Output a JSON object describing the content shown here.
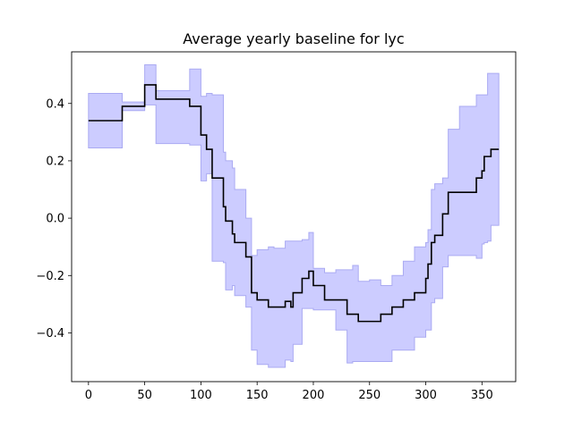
{
  "chart_data": {
    "type": "area",
    "title": "Average yearly baseline for lyc",
    "xlabel": "",
    "ylabel": "",
    "xlim": [
      -15,
      380
    ],
    "ylim": [
      -0.57,
      0.58
    ],
    "xticks": [
      0,
      50,
      100,
      150,
      200,
      250,
      300,
      350
    ],
    "yticks": [
      -0.4,
      -0.2,
      0.0,
      0.2,
      0.4
    ],
    "xtick_labels": [
      "0",
      "50",
      "100",
      "150",
      "200",
      "250",
      "300",
      "350"
    ],
    "ytick_labels": [
      "−0.4",
      "−0.2",
      "0.0",
      "0.2",
      "0.4"
    ],
    "grid": false,
    "line_color": "#000000",
    "band_fill_color": "#ccccff",
    "band_edge_color": "#aaaaf2",
    "series": [
      {
        "role": "mean",
        "x": [
          0,
          20,
          20,
          30,
          30,
          45,
          45,
          50,
          50,
          55,
          55,
          60,
          60,
          90,
          90,
          100,
          100,
          105,
          105,
          110,
          110,
          120,
          120,
          122,
          122,
          128,
          128,
          130,
          130,
          140,
          140,
          145,
          145,
          150,
          150,
          160,
          160,
          165,
          165,
          175,
          175,
          180,
          180,
          182,
          182,
          190,
          190,
          196,
          196,
          200,
          200,
          210,
          210,
          220,
          220,
          230,
          230,
          235,
          235,
          240,
          240,
          250,
          250,
          260,
          260,
          270,
          270,
          280,
          280,
          290,
          290,
          300,
          300,
          302,
          302,
          305,
          305,
          308,
          308,
          315,
          315,
          320,
          320,
          325,
          325,
          330,
          330,
          340,
          340,
          345,
          345,
          350,
          350,
          352,
          352,
          355,
          355,
          358,
          358,
          360,
          360,
          365
        ],
        "y": [
          0.34,
          0.34,
          0.34,
          0.34,
          0.39,
          0.39,
          0.39,
          0.39,
          0.465,
          0.465,
          0.465,
          0.465,
          0.415,
          0.415,
          0.39,
          0.39,
          0.29,
          0.29,
          0.24,
          0.24,
          0.14,
          0.14,
          0.04,
          0.04,
          -0.01,
          -0.01,
          -0.055,
          -0.055,
          -0.085,
          -0.085,
          -0.135,
          -0.135,
          -0.26,
          -0.26,
          -0.285,
          -0.285,
          -0.31,
          -0.31,
          -0.31,
          -0.31,
          -0.29,
          -0.29,
          -0.31,
          -0.31,
          -0.26,
          -0.26,
          -0.21,
          -0.21,
          -0.185,
          -0.185,
          -0.235,
          -0.235,
          -0.285,
          -0.285,
          -0.285,
          -0.285,
          -0.335,
          -0.335,
          -0.335,
          -0.335,
          -0.36,
          -0.36,
          -0.36,
          -0.36,
          -0.335,
          -0.335,
          -0.31,
          -0.31,
          -0.285,
          -0.285,
          -0.26,
          -0.26,
          -0.21,
          -0.21,
          -0.16,
          -0.16,
          -0.085,
          -0.085,
          -0.06,
          -0.06,
          0.015,
          0.015,
          0.09,
          0.09,
          0.09,
          0.09,
          0.09,
          0.09,
          0.09,
          0.09,
          0.14,
          0.14,
          0.165,
          0.165,
          0.215,
          0.215,
          0.215,
          0.215,
          0.24,
          0.24,
          0.24,
          0.24
        ]
      },
      {
        "role": "band_upper",
        "x": [
          0,
          20,
          20,
          30,
          30,
          45,
          45,
          50,
          50,
          55,
          55,
          60,
          60,
          90,
          90,
          100,
          100,
          105,
          105,
          110,
          110,
          120,
          120,
          122,
          122,
          128,
          128,
          130,
          130,
          140,
          140,
          145,
          145,
          150,
          150,
          160,
          160,
          165,
          165,
          175,
          175,
          180,
          180,
          182,
          182,
          190,
          190,
          196,
          196,
          200,
          200,
          210,
          210,
          220,
          220,
          230,
          230,
          235,
          235,
          240,
          240,
          250,
          250,
          260,
          260,
          270,
          270,
          280,
          280,
          290,
          290,
          300,
          300,
          302,
          302,
          305,
          305,
          308,
          308,
          315,
          315,
          320,
          320,
          325,
          325,
          330,
          330,
          340,
          340,
          345,
          345,
          350,
          350,
          352,
          352,
          355,
          355,
          358,
          358,
          360,
          360,
          365
        ],
        "y": [
          0.435,
          0.435,
          0.435,
          0.435,
          0.405,
          0.405,
          0.405,
          0.405,
          0.535,
          0.535,
          0.535,
          0.535,
          0.445,
          0.445,
          0.52,
          0.52,
          0.425,
          0.425,
          0.435,
          0.435,
          0.43,
          0.43,
          0.23,
          0.23,
          0.2,
          0.2,
          0.175,
          0.175,
          0.1,
          0.1,
          0.0,
          0.0,
          -0.13,
          -0.13,
          -0.11,
          -0.11,
          -0.1,
          -0.1,
          -0.105,
          -0.105,
          -0.08,
          -0.08,
          -0.08,
          -0.08,
          -0.08,
          -0.08,
          -0.075,
          -0.075,
          -0.05,
          -0.05,
          -0.175,
          -0.175,
          -0.19,
          -0.19,
          -0.18,
          -0.18,
          -0.18,
          -0.18,
          -0.165,
          -0.165,
          -0.22,
          -0.22,
          -0.215,
          -0.215,
          -0.235,
          -0.235,
          -0.2,
          -0.2,
          -0.15,
          -0.15,
          -0.1,
          -0.1,
          -0.085,
          -0.085,
          -0.04,
          -0.04,
          0.1,
          0.1,
          0.12,
          0.12,
          0.14,
          0.14,
          0.31,
          0.31,
          0.31,
          0.31,
          0.39,
          0.39,
          0.39,
          0.39,
          0.43,
          0.43,
          0.43,
          0.43,
          0.43,
          0.43,
          0.505,
          0.505,
          0.505,
          0.505,
          0.505,
          0.505
        ]
      },
      {
        "role": "band_lower",
        "x": [
          0,
          20,
          20,
          30,
          30,
          45,
          45,
          50,
          50,
          55,
          55,
          60,
          60,
          90,
          90,
          100,
          100,
          105,
          105,
          110,
          110,
          120,
          120,
          122,
          122,
          128,
          128,
          130,
          130,
          140,
          140,
          145,
          145,
          150,
          150,
          160,
          160,
          165,
          165,
          175,
          175,
          180,
          180,
          182,
          182,
          190,
          190,
          196,
          196,
          200,
          200,
          210,
          210,
          220,
          220,
          230,
          230,
          235,
          235,
          240,
          240,
          250,
          250,
          260,
          260,
          270,
          270,
          280,
          280,
          290,
          290,
          300,
          300,
          302,
          302,
          305,
          305,
          308,
          308,
          315,
          315,
          320,
          320,
          325,
          325,
          330,
          330,
          340,
          340,
          345,
          345,
          350,
          350,
          352,
          352,
          355,
          355,
          358,
          358,
          360,
          360,
          365
        ],
        "y": [
          0.245,
          0.245,
          0.245,
          0.245,
          0.375,
          0.375,
          0.375,
          0.375,
          0.395,
          0.395,
          0.395,
          0.395,
          0.26,
          0.26,
          0.255,
          0.255,
          0.13,
          0.13,
          0.155,
          0.155,
          -0.15,
          -0.15,
          -0.155,
          -0.155,
          -0.25,
          -0.25,
          -0.235,
          -0.235,
          -0.27,
          -0.27,
          -0.31,
          -0.31,
          -0.46,
          -0.46,
          -0.51,
          -0.51,
          -0.52,
          -0.52,
          -0.52,
          -0.52,
          -0.495,
          -0.495,
          -0.5,
          -0.5,
          -0.44,
          -0.44,
          -0.315,
          -0.315,
          -0.315,
          -0.315,
          -0.32,
          -0.32,
          -0.32,
          -0.32,
          -0.39,
          -0.39,
          -0.505,
          -0.505,
          -0.5,
          -0.5,
          -0.5,
          -0.5,
          -0.5,
          -0.5,
          -0.5,
          -0.5,
          -0.46,
          -0.46,
          -0.46,
          -0.46,
          -0.415,
          -0.415,
          -0.39,
          -0.39,
          -0.39,
          -0.39,
          -0.295,
          -0.295,
          -0.28,
          -0.28,
          -0.17,
          -0.17,
          -0.13,
          -0.13,
          -0.13,
          -0.13,
          -0.13,
          -0.13,
          -0.13,
          -0.13,
          -0.14,
          -0.14,
          -0.09,
          -0.09,
          -0.085,
          -0.085,
          -0.08,
          -0.08,
          -0.025,
          -0.025,
          -0.025,
          -0.025
        ]
      }
    ]
  }
}
